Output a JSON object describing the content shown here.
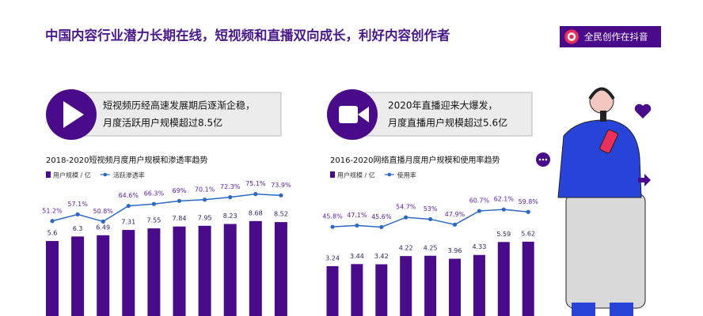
{
  "header": {
    "title": "中国内容行业潜力长期在线，短视频和直播双向成长，利好内容创作者",
    "badge": "全民创作在抖音"
  },
  "cards": [
    {
      "lines": [
        "短视频历经高速发展期后逐渐企稳，",
        "月度活跃用户规模超过8.5亿"
      ]
    },
    {
      "lines": [
        "2020年直播迎来大爆发，",
        "月度直播用户规模超过5.6亿"
      ]
    }
  ],
  "chart_data": [
    {
      "type": "bar",
      "title": "2018-2020短视频月度用户规模和渗透率趋势",
      "ylim": [
        0,
        10
      ],
      "y2lim": [
        0,
        100
      ],
      "series": [
        {
          "name": "用户规模 / 亿",
          "color": "#4a0b8a",
          "values": [
            5.6,
            6.3,
            6.49,
            7.31,
            7.55,
            7.84,
            7.95,
            8.23,
            8.68,
            8.52
          ]
        },
        {
          "name": "活跃渗透率",
          "type": "line",
          "axis": "y2",
          "color": "#2c68c4",
          "values": [
            51.2,
            57.1,
            50.8,
            64.6,
            66.3,
            69,
            70.1,
            72.3,
            75.1,
            73.9
          ],
          "value_labels": [
            "51.2%",
            "57.1%",
            "50.8%",
            "64.6%",
            "66.3%",
            "69%",
            "70.1%",
            "72.3%",
            "75.1%",
            "73.9%"
          ]
        }
      ]
    },
    {
      "type": "bar",
      "title": "2016-2020网络直播月度用户规模和使用率趋势",
      "ylim": [
        0,
        8
      ],
      "y2lim": [
        0,
        100
      ],
      "series": [
        {
          "name": "用户规模 / 亿",
          "color": "#4a0b8a",
          "values": [
            3.24,
            3.44,
            3.42,
            4.22,
            4.25,
            3.96,
            4.33,
            5.59,
            5.62
          ]
        },
        {
          "name": "使用率",
          "type": "line",
          "axis": "y2",
          "color": "#2c68c4",
          "values": [
            45.8,
            47.1,
            45.6,
            54.7,
            53,
            47.9,
            60.7,
            62.1,
            59.8
          ],
          "value_labels": [
            "45.8%",
            "47.1%",
            "45.6%",
            "54.7%",
            "53%",
            "47.9%",
            "60.7%",
            "62.1%",
            "59.8%"
          ]
        }
      ]
    }
  ]
}
